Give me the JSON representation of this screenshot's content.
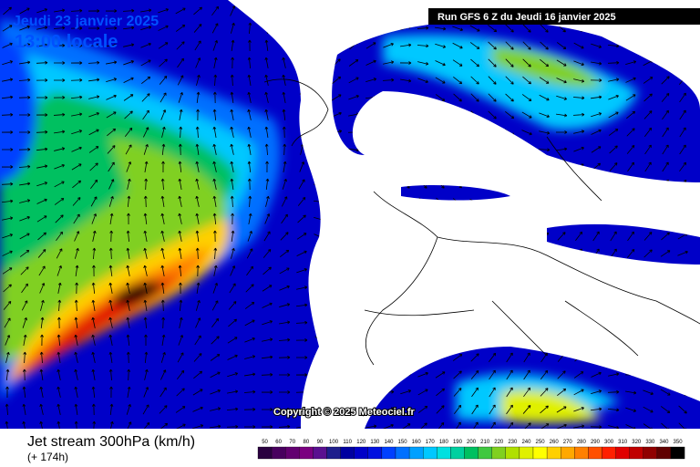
{
  "header": {
    "date": "Jeudi 23 janvier 2025",
    "time": "13:00 locale",
    "run": "Run GFS 6 Z du Jeudi 16 janvier 2025"
  },
  "map": {
    "copyright": "Copyright © 2025 Meteociel.fr"
  },
  "footer": {
    "title": "Jet stream 300hPa (km/h)",
    "lead": "(+ 174h)"
  },
  "legend": {
    "labels": [
      50,
      60,
      70,
      80,
      90,
      100,
      110,
      120,
      130,
      140,
      150,
      160,
      170,
      180,
      190,
      200,
      210,
      220,
      230,
      240,
      250,
      260,
      270,
      280,
      290,
      300,
      310,
      320,
      330,
      340,
      350
    ],
    "colors": [
      "#2a0040",
      "#48005e",
      "#620070",
      "#7a0080",
      "#5a1090",
      "#1e1e8c",
      "#0000a0",
      "#0000c8",
      "#0010e0",
      "#0040ff",
      "#0070ff",
      "#00a0ff",
      "#00c8ff",
      "#00e0e0",
      "#00d0a0",
      "#00c060",
      "#40c840",
      "#80d020",
      "#b0e000",
      "#e0f000",
      "#ffff00",
      "#ffd000",
      "#ffa800",
      "#ff8000",
      "#ff5000",
      "#ff2000",
      "#e00000",
      "#c00000",
      "#900000",
      "#600000",
      "#000000"
    ]
  }
}
